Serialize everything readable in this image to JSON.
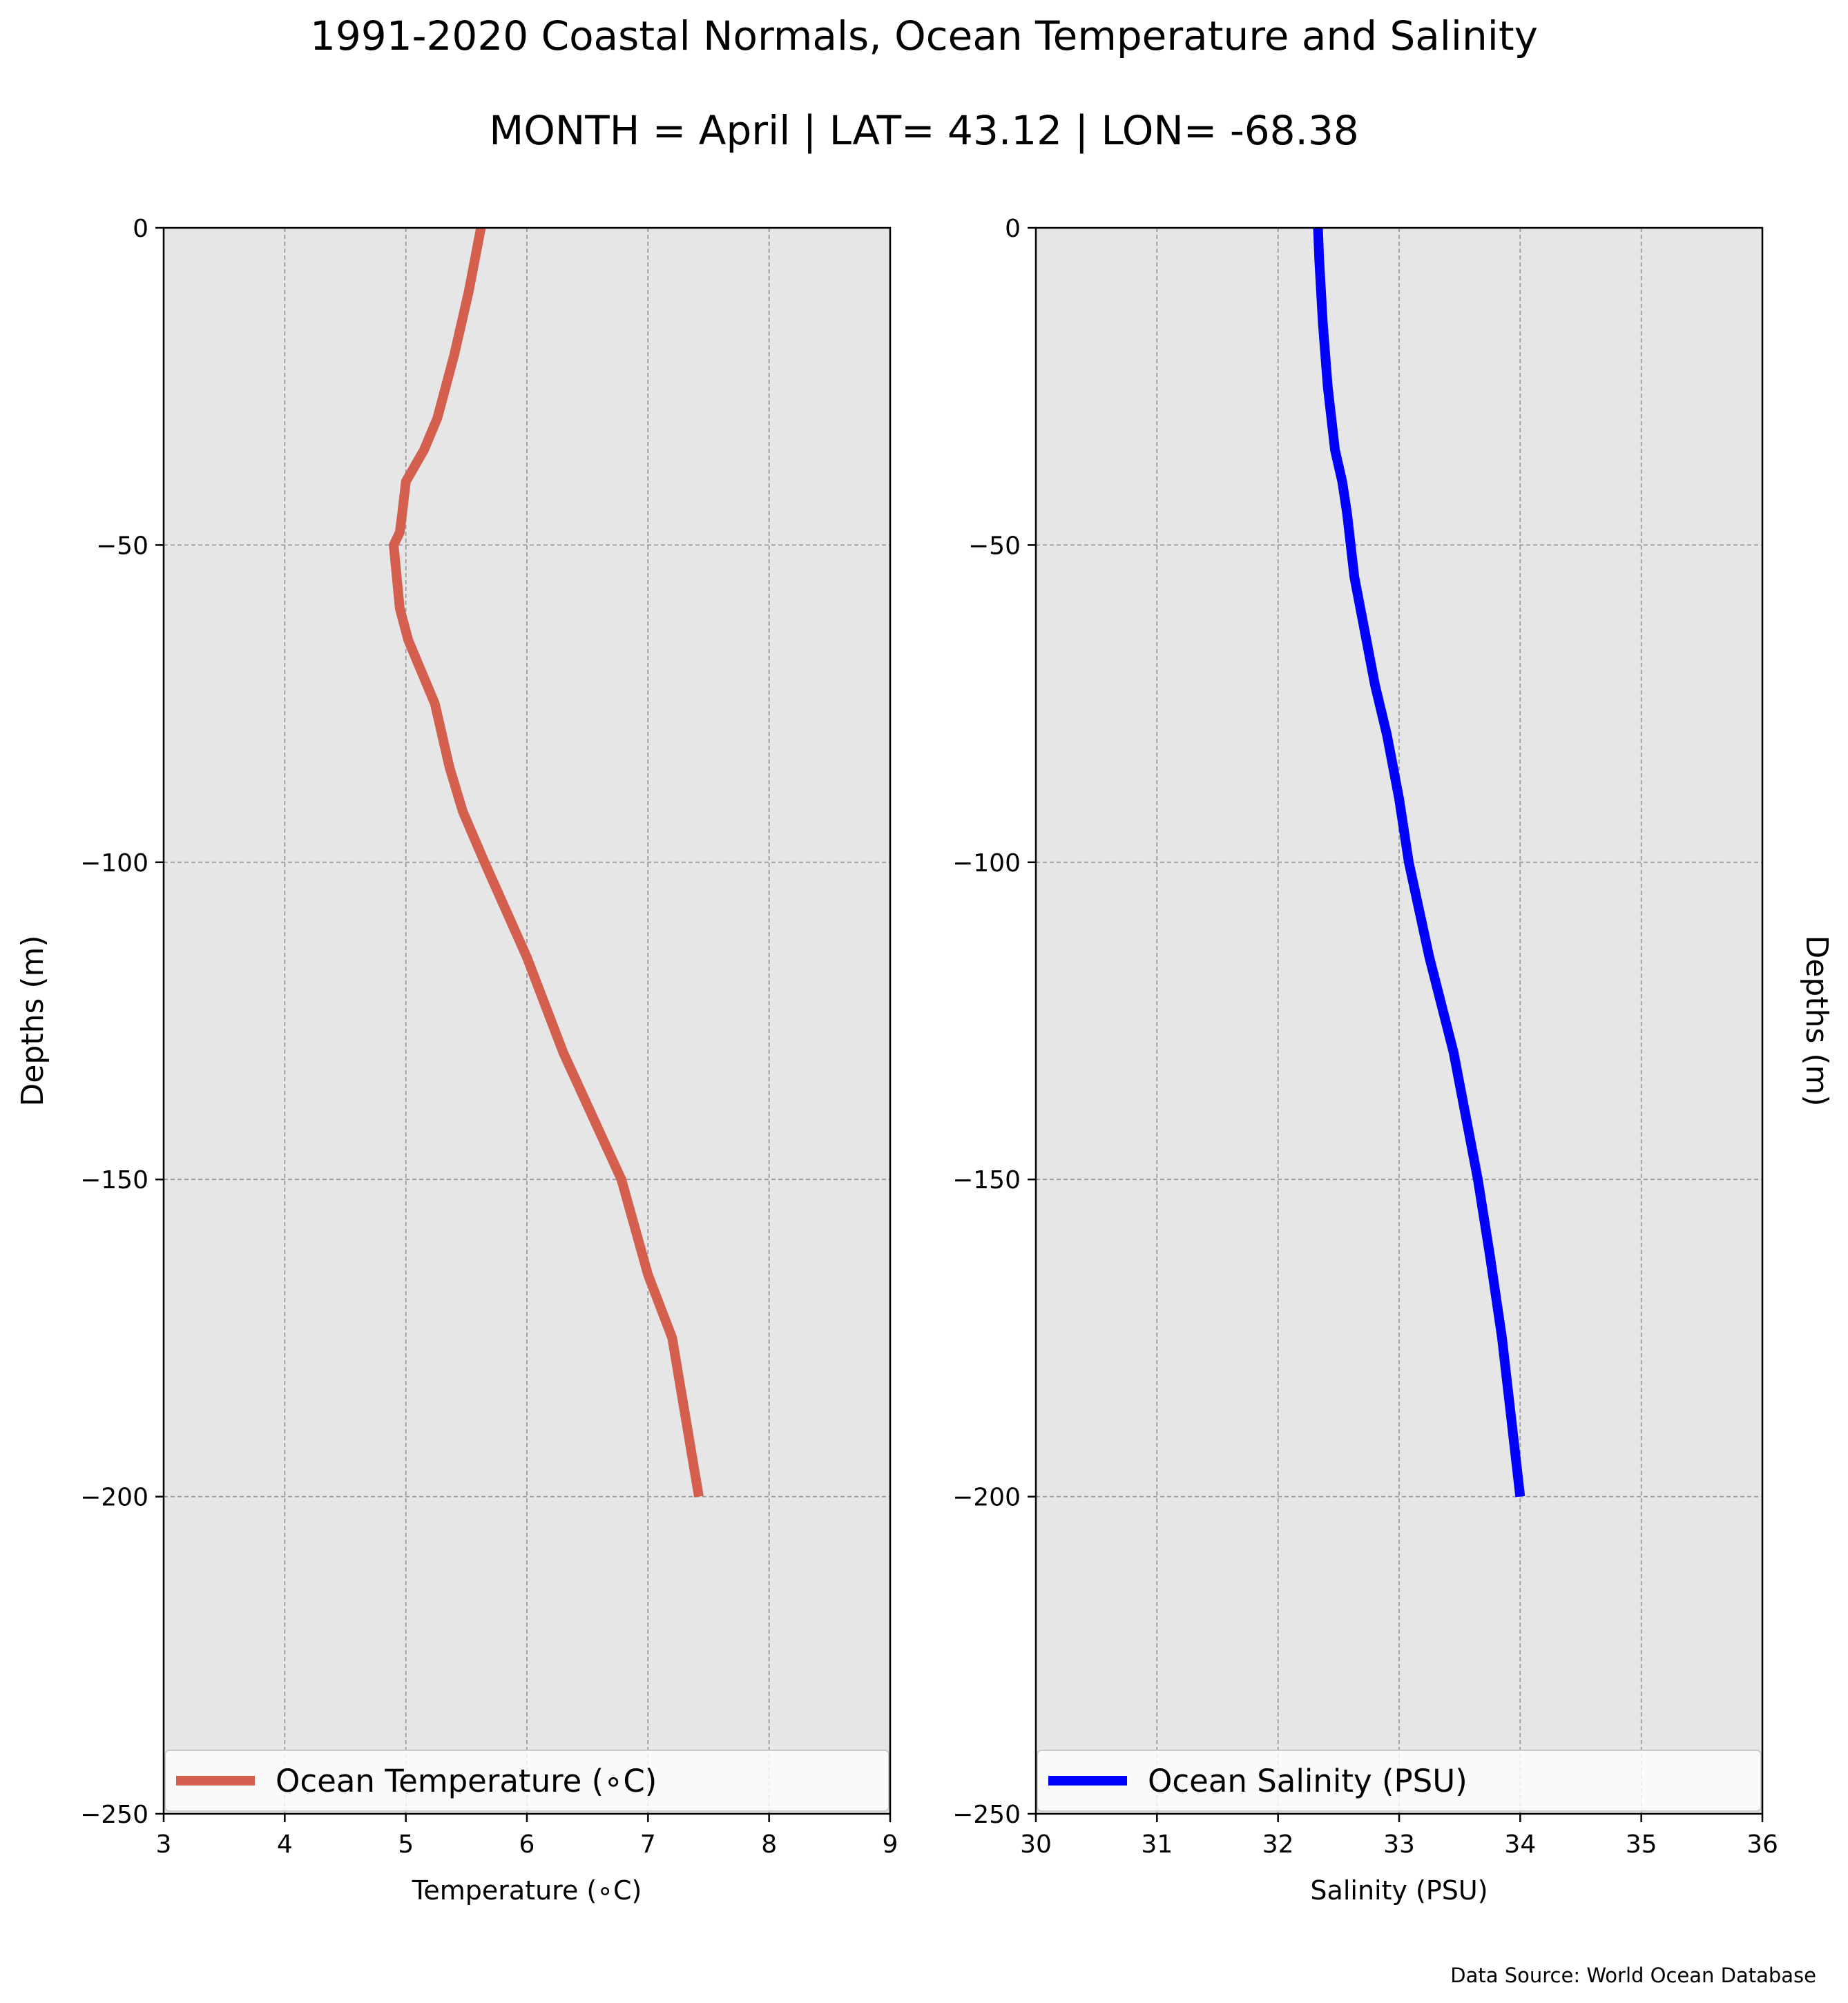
{
  "figure": {
    "title": "1991-2020 Coastal Normals, Ocean Temperature and Salinity",
    "subtitle": "MONTH = April | LAT= 43.12 | LON= -68.38",
    "source": "Data Source: World Ocean Database",
    "background": "#e6e6e6"
  },
  "chart_data": [
    {
      "type": "line",
      "xlabel": "Temperature (∘C)",
      "ylabel": "Depths (m)",
      "xlim": [
        3,
        9
      ],
      "ylim": [
        -250,
        0
      ],
      "xticks": [
        "3",
        "4",
        "5",
        "6",
        "7",
        "8",
        "9"
      ],
      "yticks": [
        "0",
        "−50",
        "−100",
        "−150",
        "−200",
        "−250"
      ],
      "ytick_values": [
        0,
        -50,
        -100,
        -150,
        -200,
        -250
      ],
      "xtick_values": [
        3,
        4,
        5,
        6,
        7,
        8,
        9
      ],
      "grid": true,
      "legend_position": "bottom",
      "series": [
        {
          "name": "Ocean Temperature (∘C)",
          "color": "#d45f4e",
          "x": [
            5.62,
            5.52,
            5.4,
            5.26,
            5.15,
            5.0,
            4.97,
            4.95,
            4.9,
            4.95,
            5.02,
            5.24,
            5.36,
            5.47,
            5.65,
            6.0,
            6.3,
            6.78,
            7.0,
            7.2,
            7.42
          ],
          "y": [
            0,
            -10,
            -20,
            -30,
            -35,
            -40,
            -45,
            -48,
            -50,
            -60,
            -65,
            -75,
            -85,
            -92,
            -100,
            -115,
            -130,
            -150,
            -165,
            -175,
            -200
          ]
        }
      ]
    },
    {
      "type": "line",
      "xlabel": "Salinity (PSU)",
      "ylabel": "Depths (m)",
      "xlim": [
        30,
        36
      ],
      "ylim": [
        -250,
        0
      ],
      "xticks": [
        "30",
        "31",
        "32",
        "33",
        "34",
        "35",
        "36"
      ],
      "yticks": [
        "0",
        "−50",
        "−100",
        "−150",
        "−200",
        "−250"
      ],
      "ytick_values": [
        0,
        -50,
        -100,
        -150,
        -200,
        -250
      ],
      "xtick_values": [
        30,
        31,
        32,
        33,
        34,
        35,
        36
      ],
      "grid": true,
      "legend_position": "bottom",
      "series": [
        {
          "name": "Ocean Salinity (PSU)",
          "color": "#0000ff",
          "x": [
            32.33,
            32.34,
            32.37,
            32.41,
            32.47,
            32.53,
            32.57,
            32.63,
            32.73,
            32.8,
            32.9,
            33.0,
            33.08,
            33.25,
            33.45,
            33.65,
            33.75,
            33.85,
            34.0
          ],
          "y": [
            0,
            -5,
            -15,
            -25,
            -35,
            -40,
            -45,
            -55,
            -65,
            -72,
            -80,
            -90,
            -100,
            -115,
            -130,
            -150,
            -162,
            -175,
            -200
          ]
        }
      ]
    }
  ]
}
